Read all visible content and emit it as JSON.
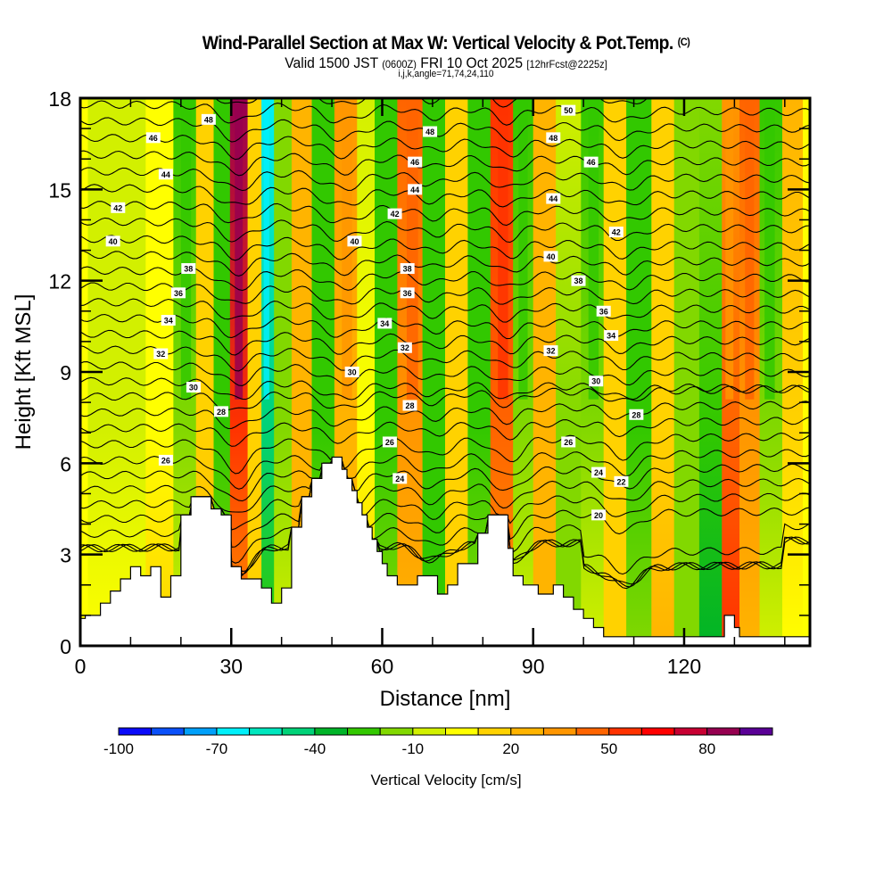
{
  "header": {
    "title": "Wind-Parallel Section at Max W: Vertical Velocity & Pot.Temp.",
    "copyright": "(C)",
    "valid_main": "Valid 1500 JST",
    "valid_utc": "(0600Z)",
    "valid_date": "FRI 10 Oct 2025",
    "forecast": "[12hrFcst@2225z]",
    "indices": "i,j,k,angle=71,74,24,110"
  },
  "chart_data": {
    "type": "heatmap",
    "title": "Wind-Parallel Section at Max W: Vertical Velocity & Pot.Temp.",
    "xlabel": "Distance [nm]",
    "ylabel": "Height [Kft MSL]",
    "xlim": [
      0,
      145
    ],
    "ylim": [
      0,
      18
    ],
    "x_ticks": [
      "0",
      "30",
      "60",
      "90",
      "120"
    ],
    "x_tick_values": [
      0,
      30,
      60,
      90,
      120
    ],
    "y_ticks": [
      "0",
      "3",
      "6",
      "9",
      "12",
      "15",
      "18"
    ],
    "y_tick_values": [
      0,
      3,
      6,
      9,
      12,
      15,
      18
    ],
    "colorbar": {
      "title": "Vertical Velocity [cm/s]",
      "labels": [
        "-100",
        "-70",
        "-40",
        "-10",
        "20",
        "50",
        "80"
      ],
      "label_values": [
        -100,
        -70,
        -40,
        -10,
        20,
        50,
        80
      ],
      "boundaries": [
        -100,
        -90,
        -80,
        -70,
        -60,
        -50,
        -40,
        -30,
        -20,
        -10,
        0,
        10,
        20,
        30,
        40,
        50,
        60,
        70,
        80,
        90,
        100
      ],
      "colors": [
        "#0a0afa",
        "#0a50fa",
        "#00a0fa",
        "#00f0fa",
        "#00e6be",
        "#00d278",
        "#00b428",
        "#32c800",
        "#82d800",
        "#d2f000",
        "#ffff00",
        "#ffd200",
        "#ffb400",
        "#ff9600",
        "#ff6400",
        "#ff3200",
        "#ff0000",
        "#c80032",
        "#960050",
        "#5a0096"
      ]
    },
    "velocity_bands": [
      {
        "x": 3,
        "w_top": -10,
        "w_low": 0
      },
      {
        "x": 10,
        "w_top": -10,
        "w_low": 0
      },
      {
        "x": 16,
        "w_top": 0,
        "w_low": 10
      },
      {
        "x": 21,
        "w_top": -30,
        "w_low": -10
      },
      {
        "x": 25,
        "w_top": 10,
        "w_low": 20
      },
      {
        "x": 28,
        "w_top": -30,
        "w_low": -20
      },
      {
        "x": 31.5,
        "w_top": 80,
        "w_low": 30
      },
      {
        "x": 35,
        "w_top": 10,
        "w_low": 10
      },
      {
        "x": 37,
        "w_top": -70,
        "w_low": -30
      },
      {
        "x": 40,
        "w_top": -20,
        "w_low": -10
      },
      {
        "x": 44,
        "w_top": 20,
        "w_low": 20
      },
      {
        "x": 48,
        "w_top": -30,
        "w_low": -20
      },
      {
        "x": 53,
        "w_top": 30,
        "w_low": 20
      },
      {
        "x": 57,
        "w_top": -10,
        "w_low": 10
      },
      {
        "x": 60,
        "w_top": -30,
        "w_low": -20
      },
      {
        "x": 66,
        "w_top": 40,
        "w_low": 20
      },
      {
        "x": 70,
        "w_top": -30,
        "w_low": -30
      },
      {
        "x": 75,
        "w_top": 10,
        "w_low": 10
      },
      {
        "x": 79,
        "w_top": -30,
        "w_low": -20
      },
      {
        "x": 84,
        "w_top": 50,
        "w_low": 30
      },
      {
        "x": 88,
        "w_top": -30,
        "w_low": -10
      },
      {
        "x": 92,
        "w_top": 20,
        "w_low": 20
      },
      {
        "x": 97,
        "w_top": -10,
        "w_low": -20
      },
      {
        "x": 102,
        "w_top": -30,
        "w_low": -10
      },
      {
        "x": 106,
        "w_top": 10,
        "w_low": 10
      },
      {
        "x": 111,
        "w_top": -30,
        "w_low": -20
      },
      {
        "x": 116,
        "w_top": 10,
        "w_low": 20
      },
      {
        "x": 120,
        "w_top": -20,
        "w_low": -20
      },
      {
        "x": 126,
        "w_top": -20,
        "w_low": -40
      },
      {
        "x": 129,
        "w_top": 30,
        "w_low": 50
      },
      {
        "x": 133,
        "w_top": 40,
        "w_low": 20
      },
      {
        "x": 137,
        "w_top": -30,
        "w_low": -10
      },
      {
        "x": 142,
        "w_top": 20,
        "w_low": 0
      }
    ],
    "theta_contours": [
      20,
      22,
      24,
      26,
      28,
      30,
      32,
      34,
      36,
      38,
      40,
      42,
      44,
      46,
      48,
      50
    ],
    "contour_labels": [
      {
        "text": "48",
        "x": 25.5,
        "y": 17.3
      },
      {
        "text": "46",
        "x": 14.5,
        "y": 16.7
      },
      {
        "text": "44",
        "x": 17,
        "y": 15.5
      },
      {
        "text": "42",
        "x": 7.5,
        "y": 14.4
      },
      {
        "text": "40",
        "x": 6.5,
        "y": 13.3
      },
      {
        "text": "38",
        "x": 21.5,
        "y": 12.4
      },
      {
        "text": "36",
        "x": 19.5,
        "y": 11.6
      },
      {
        "text": "34",
        "x": 17.5,
        "y": 10.7
      },
      {
        "text": "32",
        "x": 16,
        "y": 9.6
      },
      {
        "text": "30",
        "x": 22.5,
        "y": 8.5
      },
      {
        "text": "28",
        "x": 28,
        "y": 7.7
      },
      {
        "text": "26",
        "x": 17,
        "y": 6.1
      },
      {
        "text": "48",
        "x": 69.5,
        "y": 16.9
      },
      {
        "text": "46",
        "x": 66.5,
        "y": 15.9
      },
      {
        "text": "44",
        "x": 66.5,
        "y": 15.0
      },
      {
        "text": "42",
        "x": 62.5,
        "y": 14.2
      },
      {
        "text": "40",
        "x": 54.5,
        "y": 13.3
      },
      {
        "text": "38",
        "x": 65,
        "y": 12.4
      },
      {
        "text": "36",
        "x": 65,
        "y": 11.6
      },
      {
        "text": "34",
        "x": 60.5,
        "y": 10.6
      },
      {
        "text": "32",
        "x": 64.5,
        "y": 9.8
      },
      {
        "text": "30",
        "x": 54,
        "y": 9.0
      },
      {
        "text": "28",
        "x": 65.5,
        "y": 7.9
      },
      {
        "text": "26",
        "x": 61.5,
        "y": 6.7
      },
      {
        "text": "24",
        "x": 63.5,
        "y": 5.5
      },
      {
        "text": "50",
        "x": 97,
        "y": 17.6
      },
      {
        "text": "48",
        "x": 94,
        "y": 16.7
      },
      {
        "text": "46",
        "x": 101.5,
        "y": 15.9
      },
      {
        "text": "44",
        "x": 94,
        "y": 14.7
      },
      {
        "text": "42",
        "x": 106.5,
        "y": 13.6
      },
      {
        "text": "40",
        "x": 93.5,
        "y": 12.8
      },
      {
        "text": "38",
        "x": 99,
        "y": 12.0
      },
      {
        "text": "36",
        "x": 104,
        "y": 11.0
      },
      {
        "text": "34",
        "x": 105.5,
        "y": 10.2
      },
      {
        "text": "32",
        "x": 93.5,
        "y": 9.7
      },
      {
        "text": "30",
        "x": 102.5,
        "y": 8.7
      },
      {
        "text": "28",
        "x": 110.5,
        "y": 7.6
      },
      {
        "text": "26",
        "x": 97,
        "y": 6.7
      },
      {
        "text": "24",
        "x": 103,
        "y": 5.7
      },
      {
        "text": "22",
        "x": 107.5,
        "y": 5.4
      },
      {
        "text": "20",
        "x": 103,
        "y": 4.3
      }
    ],
    "terrain": [
      [
        0,
        0.9
      ],
      [
        1,
        0.9
      ],
      [
        1,
        1.0
      ],
      [
        4,
        1.0
      ],
      [
        4,
        1.4
      ],
      [
        6,
        1.4
      ],
      [
        6,
        1.8
      ],
      [
        8,
        1.8
      ],
      [
        8,
        2.2
      ],
      [
        10,
        2.2
      ],
      [
        10,
        2.6
      ],
      [
        12,
        2.6
      ],
      [
        12,
        2.3
      ],
      [
        14,
        2.3
      ],
      [
        14,
        2.6
      ],
      [
        16,
        2.6
      ],
      [
        16,
        1.6
      ],
      [
        18,
        1.6
      ],
      [
        18,
        2.3
      ],
      [
        20,
        2.3
      ],
      [
        20,
        4.3
      ],
      [
        22,
        4.3
      ],
      [
        22,
        4.9
      ],
      [
        26,
        4.9
      ],
      [
        26,
        4.5
      ],
      [
        28,
        4.5
      ],
      [
        28,
        4.3
      ],
      [
        30,
        4.3
      ],
      [
        30,
        2.6
      ],
      [
        32,
        2.6
      ],
      [
        32,
        2.2
      ],
      [
        36,
        2.2
      ],
      [
        36,
        1.9
      ],
      [
        38,
        1.9
      ],
      [
        38,
        1.4
      ],
      [
        40,
        1.4
      ],
      [
        40,
        1.9
      ],
      [
        42,
        1.9
      ],
      [
        42,
        3.9
      ],
      [
        44,
        3.9
      ],
      [
        44,
        4.9
      ],
      [
        46,
        4.9
      ],
      [
        46,
        5.5
      ],
      [
        48,
        5.5
      ],
      [
        48,
        6.0
      ],
      [
        50,
        6.0
      ],
      [
        50,
        6.2
      ],
      [
        52,
        6.2
      ],
      [
        52,
        5.8
      ],
      [
        53,
        5.8
      ],
      [
        53,
        5.5
      ],
      [
        54,
        5.5
      ],
      [
        54,
        5.1
      ],
      [
        55,
        5.1
      ],
      [
        55,
        4.7
      ],
      [
        56,
        4.7
      ],
      [
        56,
        4.3
      ],
      [
        57,
        4.3
      ],
      [
        57,
        3.9
      ],
      [
        58,
        3.9
      ],
      [
        58,
        3.5
      ],
      [
        59,
        3.5
      ],
      [
        59,
        3.1
      ],
      [
        60,
        3.1
      ],
      [
        60,
        2.7
      ],
      [
        61,
        2.7
      ],
      [
        61,
        2.3
      ],
      [
        63,
        2.3
      ],
      [
        63,
        2.0
      ],
      [
        67,
        2.0
      ],
      [
        67,
        2.3
      ],
      [
        71,
        2.3
      ],
      [
        71,
        1.7
      ],
      [
        73,
        1.7
      ],
      [
        73,
        2.0
      ],
      [
        75,
        2.0
      ],
      [
        75,
        2.7
      ],
      [
        79,
        2.7
      ],
      [
        79,
        3.7
      ],
      [
        81,
        3.7
      ],
      [
        81,
        4.3
      ],
      [
        85,
        4.3
      ],
      [
        85,
        3.2
      ],
      [
        86,
        3.2
      ],
      [
        86,
        2.3
      ],
      [
        88,
        2.3
      ],
      [
        88,
        2.0
      ],
      [
        91,
        2.0
      ],
      [
        91,
        1.7
      ],
      [
        94,
        1.7
      ],
      [
        94,
        2.0
      ],
      [
        96,
        2.0
      ],
      [
        96,
        1.6
      ],
      [
        98,
        1.6
      ],
      [
        98,
        1.2
      ],
      [
        100,
        1.2
      ],
      [
        100,
        0.9
      ],
      [
        102,
        0.9
      ],
      [
        102,
        0.6
      ],
      [
        104,
        0.6
      ],
      [
        104,
        0.3
      ],
      [
        128,
        0.3
      ],
      [
        128,
        1.0
      ],
      [
        130,
        1.0
      ],
      [
        130,
        0.6
      ],
      [
        131,
        0.6
      ],
      [
        131,
        0.3
      ],
      [
        145,
        0.3
      ],
      [
        145,
        0.0
      ]
    ]
  }
}
